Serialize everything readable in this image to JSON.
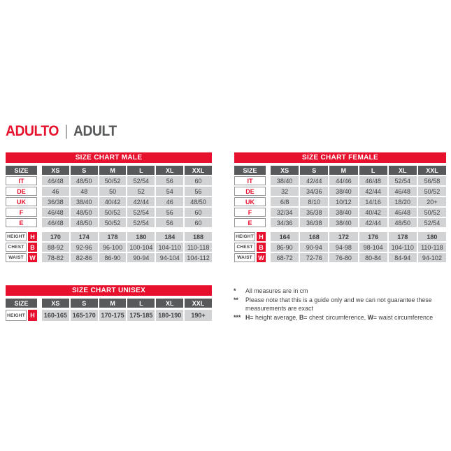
{
  "title": {
    "primary": "ADULTO",
    "separator": "|",
    "secondary": "ADULT"
  },
  "colors": {
    "red": "#e8112d",
    "dark_gray": "#58595b",
    "cell_gray": "#d1d3d4",
    "border_gray": "#939598",
    "text_dark": "#414042"
  },
  "tables": {
    "male": {
      "title": "SIZE CHART MALE",
      "size_header": "SIZE",
      "columns": [
        "XS",
        "S",
        "M",
        "L",
        "XL",
        "XXL"
      ],
      "size_rows": [
        {
          "label": "IT",
          "values": [
            "46/48",
            "48/50",
            "50/52",
            "52/54",
            "56",
            "60"
          ]
        },
        {
          "label": "DE",
          "values": [
            "46",
            "48",
            "50",
            "52",
            "54",
            "56"
          ]
        },
        {
          "label": "UK",
          "values": [
            "36/38",
            "38/40",
            "40/42",
            "42/44",
            "46",
            "48/50"
          ]
        },
        {
          "label": "F",
          "values": [
            "46/48",
            "48/50",
            "50/52",
            "52/54",
            "56",
            "60"
          ]
        },
        {
          "label": "E",
          "values": [
            "46/48",
            "48/50",
            "50/52",
            "52/54",
            "56",
            "60"
          ]
        }
      ],
      "measure_rows": [
        {
          "label": "HEIGHT",
          "badge": "H",
          "bold": true,
          "values": [
            "170",
            "174",
            "178",
            "180",
            "184",
            "188"
          ]
        },
        {
          "label": "CHEST",
          "badge": "B",
          "bold": false,
          "values": [
            "88-92",
            "92-96",
            "96-100",
            "100-104",
            "104-110",
            "110-118"
          ]
        },
        {
          "label": "WAIST",
          "badge": "W",
          "bold": false,
          "values": [
            "78-82",
            "82-86",
            "86-90",
            "90-94",
            "94-104",
            "104-112"
          ]
        }
      ]
    },
    "female": {
      "title": "SIZE CHART FEMALE",
      "size_header": "SIZE",
      "columns": [
        "XS",
        "S",
        "M",
        "L",
        "XL",
        "XXL"
      ],
      "size_rows": [
        {
          "label": "IT",
          "values": [
            "38/40",
            "42/44",
            "44/46",
            "46/48",
            "52/54",
            "56/58"
          ]
        },
        {
          "label": "DE",
          "values": [
            "32",
            "34/36",
            "38/40",
            "42/44",
            "46/48",
            "50/52"
          ]
        },
        {
          "label": "UK",
          "values": [
            "6/8",
            "8/10",
            "10/12",
            "14/16",
            "18/20",
            "20+"
          ]
        },
        {
          "label": "F",
          "values": [
            "32/34",
            "36/38",
            "38/40",
            "40/42",
            "46/48",
            "50/52"
          ]
        },
        {
          "label": "E",
          "values": [
            "34/36",
            "36/38",
            "38/40",
            "42/44",
            "48/50",
            "52/54"
          ]
        }
      ],
      "measure_rows": [
        {
          "label": "HEIGHT",
          "badge": "H",
          "bold": true,
          "values": [
            "164",
            "168",
            "172",
            "176",
            "178",
            "180"
          ]
        },
        {
          "label": "CHEST",
          "badge": "B",
          "bold": false,
          "values": [
            "86-90",
            "90-94",
            "94-98",
            "98-104",
            "104-110",
            "110-118"
          ]
        },
        {
          "label": "WAIST",
          "badge": "W",
          "bold": false,
          "values": [
            "68-72",
            "72-76",
            "76-80",
            "80-84",
            "84-94",
            "94-102"
          ]
        }
      ]
    },
    "unisex": {
      "title": "SIZE CHART UNISEX",
      "size_header": "SIZE",
      "columns": [
        "XS",
        "S",
        "M",
        "L",
        "XL",
        "XXL"
      ],
      "size_rows": [],
      "measure_rows": [
        {
          "label": "HEIGHT",
          "badge": "H",
          "bold": true,
          "values": [
            "160-165",
            "165-170",
            "170-175",
            "175-185",
            "180-190",
            "190+"
          ]
        }
      ]
    }
  },
  "footnotes": [
    {
      "marker": "*",
      "parts": [
        {
          "text": "All measures are in cm",
          "bold": false
        }
      ]
    },
    {
      "marker": "**",
      "parts": [
        {
          "text": "Please note that this is a guide only and we can not guarantee these measurements are exact",
          "bold": false
        }
      ]
    },
    {
      "marker": "***",
      "parts": [
        {
          "text": "H",
          "bold": true
        },
        {
          "text": "= height average, ",
          "bold": false
        },
        {
          "text": "B",
          "bold": true
        },
        {
          "text": "= chest circumference, ",
          "bold": false
        },
        {
          "text": "W",
          "bold": true
        },
        {
          "text": "= waist circumference",
          "bold": false
        }
      ]
    }
  ]
}
